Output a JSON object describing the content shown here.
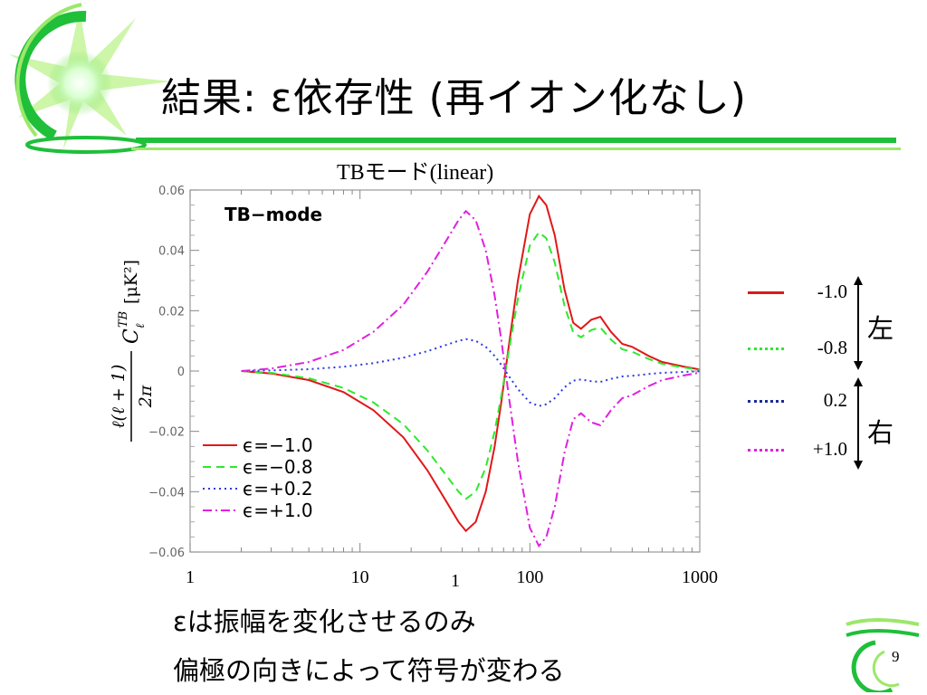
{
  "slide": {
    "title": "結果: ε依存性 (再イオン化なし)",
    "chart_heading": "TBモード(linear)",
    "bottom_lines": [
      "εは振幅を変化させるのみ",
      "偏極の向きによって符号が変わる"
    ],
    "page_number": "9",
    "accent_color": "#1fbf3a"
  },
  "side_legend": {
    "items": [
      {
        "value": "-1.0",
        "color": "#e01818",
        "style": "solid"
      },
      {
        "value": "-0.8",
        "color": "#2ee82e",
        "style": "dotted"
      },
      {
        "value": "0.2",
        "color": "#1a2a9a",
        "style": "dotted"
      },
      {
        "value": "+1.0",
        "color": "#e020e0",
        "style": "dotted"
      }
    ],
    "group_labels": [
      "左",
      "右"
    ]
  },
  "chart_data": {
    "type": "line",
    "panel_label": "TB−mode",
    "x_scale": "log",
    "xlim": [
      1,
      1000
    ],
    "ylim": [
      -0.06,
      0.06
    ],
    "y_ticks": [
      "0.06",
      "0.04",
      "0.02",
      "0",
      "−0.02",
      "−0.04",
      "−0.06"
    ],
    "y_tick_values": [
      0.06,
      0.04,
      0.02,
      0,
      -0.02,
      -0.04,
      -0.06
    ],
    "x_ticks_overlay": [
      "1",
      "10",
      "100",
      "1000"
    ],
    "x_tick_values": [
      1,
      10,
      100,
      1000
    ],
    "stray_x_label": "1",
    "ylabel_formula": "ℓ(ℓ+1)C_ℓ^{TB}[μK²] / 2π",
    "ylabel_left": "ℓ(ℓ + 1)",
    "ylabel_c": "C",
    "ylabel_sup": "TB",
    "ylabel_sub": "ℓ",
    "ylabel_unit": "[μK²]",
    "ylabel_denom": "2π",
    "legend_position": "bottom-left",
    "series": [
      {
        "name": "ϵ=−1.0",
        "color": "#e01818",
        "dash": "solid",
        "x": [
          2,
          3,
          5,
          8,
          12,
          18,
          25,
          32,
          38,
          42,
          48,
          55,
          62,
          68,
          75,
          85,
          100,
          113,
          125,
          140,
          160,
          180,
          200,
          230,
          260,
          300,
          350,
          400,
          500,
          600,
          800,
          1000
        ],
        "y": [
          0,
          -0.0008,
          -0.003,
          -0.007,
          -0.013,
          -0.022,
          -0.033,
          -0.043,
          -0.05,
          -0.053,
          -0.05,
          -0.04,
          -0.025,
          -0.01,
          0.008,
          0.03,
          0.052,
          0.058,
          0.055,
          0.045,
          0.027,
          0.016,
          0.014,
          0.017,
          0.018,
          0.013,
          0.009,
          0.008,
          0.005,
          0.003,
          0.0015,
          0.0005
        ]
      },
      {
        "name": "ϵ=−0.8",
        "color": "#2ee82e",
        "dash": "dashed",
        "x": [
          2,
          3,
          5,
          8,
          12,
          18,
          25,
          32,
          38,
          42,
          48,
          55,
          62,
          68,
          75,
          85,
          100,
          113,
          125,
          140,
          160,
          180,
          200,
          230,
          260,
          300,
          350,
          400,
          500,
          600,
          800,
          1000
        ],
        "y": [
          0,
          -0.0006,
          -0.0024,
          -0.0056,
          -0.0104,
          -0.0176,
          -0.0264,
          -0.0344,
          -0.04,
          -0.0424,
          -0.04,
          -0.032,
          -0.02,
          -0.008,
          0.0064,
          0.024,
          0.0416,
          0.046,
          0.044,
          0.036,
          0.0216,
          0.0128,
          0.0112,
          0.0136,
          0.0144,
          0.0104,
          0.0072,
          0.0064,
          0.004,
          0.0024,
          0.0012,
          0.0004
        ]
      },
      {
        "name": "ϵ=+0.2",
        "color": "#2a3ae0",
        "dash": "dotted",
        "x": [
          2,
          3,
          5,
          8,
          12,
          18,
          25,
          32,
          38,
          42,
          48,
          55,
          62,
          68,
          75,
          85,
          100,
          113,
          125,
          140,
          160,
          180,
          200,
          230,
          260,
          300,
          350,
          400,
          500,
          600,
          800,
          1000
        ],
        "y": [
          0,
          0.0002,
          0.0006,
          0.0014,
          0.0026,
          0.0044,
          0.0066,
          0.0086,
          0.01,
          0.0106,
          0.01,
          0.008,
          0.005,
          0.002,
          -0.0016,
          -0.006,
          -0.0104,
          -0.0116,
          -0.011,
          -0.009,
          -0.0054,
          -0.0032,
          -0.0028,
          -0.0034,
          -0.0036,
          -0.0026,
          -0.0018,
          -0.0016,
          -0.001,
          -0.0006,
          -0.0003,
          -0.0001
        ]
      },
      {
        "name": "ϵ=+1.0",
        "color": "#e020e0",
        "dash": "dashdot",
        "x": [
          2,
          3,
          5,
          8,
          12,
          18,
          25,
          32,
          38,
          42,
          48,
          55,
          62,
          68,
          75,
          85,
          100,
          113,
          125,
          140,
          160,
          180,
          200,
          230,
          260,
          300,
          350,
          400,
          500,
          600,
          800,
          1000
        ],
        "y": [
          0,
          0.0008,
          0.003,
          0.007,
          0.013,
          0.022,
          0.033,
          0.043,
          0.05,
          0.053,
          0.05,
          0.04,
          0.025,
          0.01,
          -0.008,
          -0.03,
          -0.052,
          -0.058,
          -0.055,
          -0.045,
          -0.027,
          -0.016,
          -0.014,
          -0.017,
          -0.018,
          -0.013,
          -0.009,
          -0.008,
          -0.005,
          -0.003,
          -0.0015,
          -0.0005
        ]
      }
    ]
  }
}
